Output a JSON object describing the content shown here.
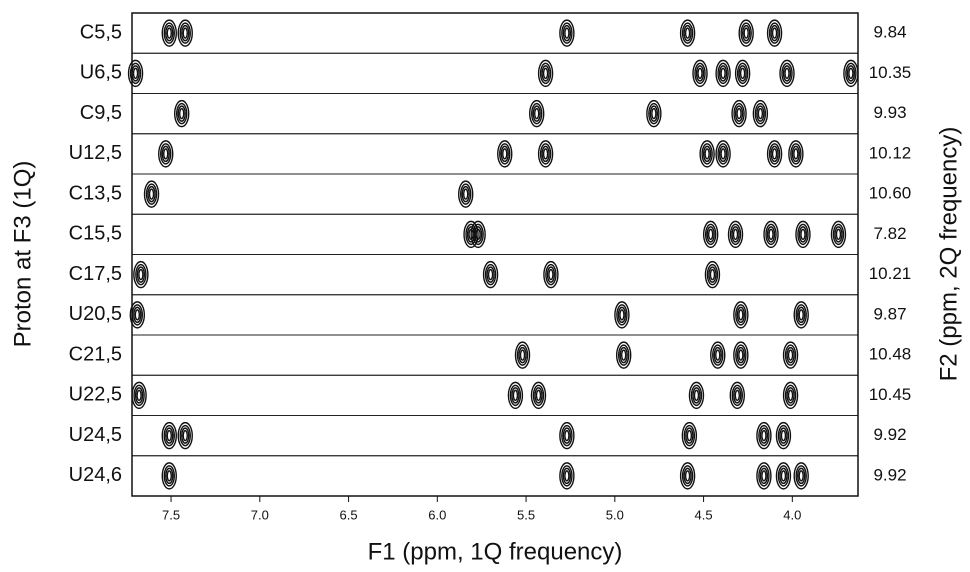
{
  "chart_data": {
    "type": "nmr-strips",
    "x_label": "F1 (ppm, 1Q frequency)",
    "y_label": "Proton at F3 (1Q)",
    "y2_label": "F2 (ppm, 2Q frequency)",
    "xlim": [
      7.72,
      3.63
    ],
    "xticks": [
      7.5,
      {
        "value": 7,
        "label": "7.0"
      },
      6.5,
      {
        "value": 6,
        "label": "6.0"
      },
      5.5,
      {
        "value": 5,
        "label": "5.0"
      },
      4.5,
      {
        "value": 4,
        "label": "4.0"
      }
    ],
    "color": "#111111",
    "strips": [
      {
        "label": "C5,5",
        "f2": "9.84",
        "peaks": [
          7.42,
          7.51,
          5.27,
          4.59,
          4.26,
          4.1
        ]
      },
      {
        "label": "U6,5",
        "f2": "10.35",
        "peaks": [
          7.7,
          5.39,
          4.52,
          4.39,
          4.28,
          4.03,
          3.67
        ]
      },
      {
        "label": "C9,5",
        "f2": "9.93",
        "peaks": [
          7.44,
          5.44,
          4.78,
          4.3,
          4.18
        ]
      },
      {
        "label": "U12,5",
        "f2": "10.12",
        "peaks": [
          7.53,
          5.62,
          5.39,
          4.48,
          4.39,
          4.1,
          3.98
        ]
      },
      {
        "label": "C13,5",
        "f2": "10.60",
        "peaks": [
          7.61,
          5.84
        ]
      },
      {
        "label": "C15,5",
        "f2": "7.82",
        "peaks": [
          5.81,
          5.77,
          4.46,
          4.32,
          4.12,
          3.94,
          3.74
        ]
      },
      {
        "label": "C17,5",
        "f2": "10.21",
        "peaks": [
          7.67,
          5.7,
          5.36,
          4.45
        ]
      },
      {
        "label": "U20,5",
        "f2": "9.87",
        "peaks": [
          7.69,
          4.96,
          4.29,
          3.95
        ]
      },
      {
        "label": "C21,5",
        "f2": "10.48",
        "peaks": [
          5.52,
          4.95,
          4.42,
          4.29,
          4.01
        ]
      },
      {
        "label": "U22,5",
        "f2": "10.45",
        "peaks": [
          7.68,
          5.56,
          5.43,
          4.54,
          4.31,
          4.01
        ]
      },
      {
        "label": "U24,5",
        "f2": "9.92",
        "peaks": [
          7.51,
          7.42,
          5.27,
          4.58,
          4.16,
          4.05
        ]
      },
      {
        "label": "U24,6",
        "f2": "9.92",
        "peaks": [
          7.51,
          5.27,
          4.59,
          4.16,
          4.05,
          3.95
        ]
      }
    ]
  }
}
